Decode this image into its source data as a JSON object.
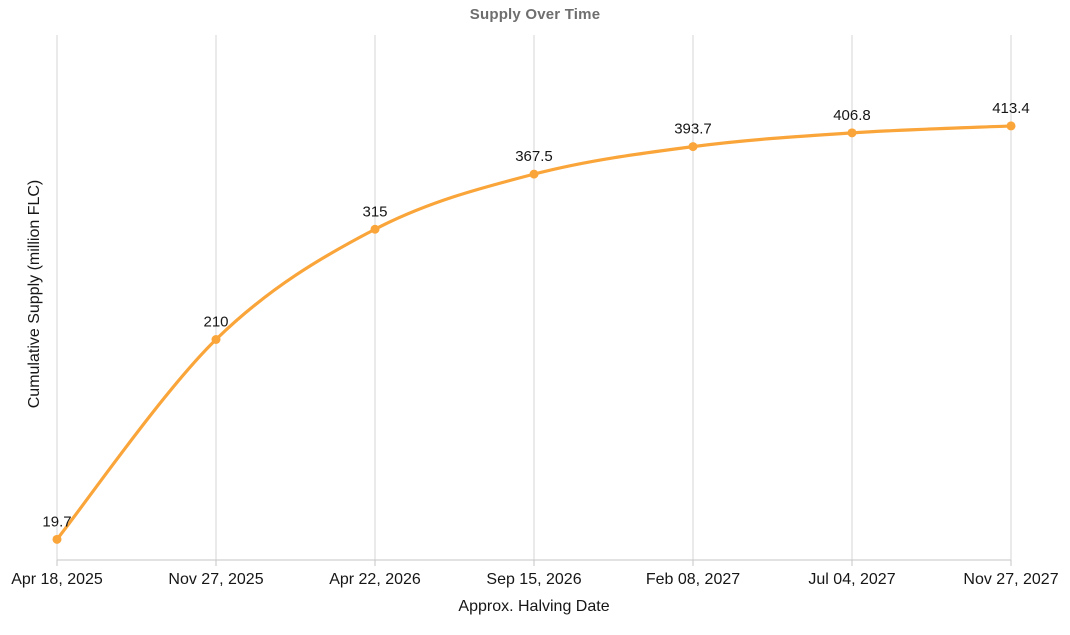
{
  "chart_data": {
    "type": "line",
    "title": "Supply Over Time",
    "xlabel": "Approx. Halving Date",
    "ylabel": "Cumulative Supply (million FLC)",
    "categories": [
      "Apr 18, 2025",
      "Nov 27, 2025",
      "Apr 22, 2026",
      "Sep 15, 2026",
      "Feb 08, 2027",
      "Jul 04, 2027",
      "Nov 27, 2027"
    ],
    "series": [
      {
        "name": "Cumulative Supply (million FLC)",
        "values": [
          19.7,
          210,
          315,
          367.5,
          393.7,
          406.8,
          413.4
        ]
      }
    ],
    "point_labels": [
      "19.7",
      "210",
      "315",
      "367.5",
      "393.7",
      "406.8",
      "413.4"
    ],
    "ylim": [
      0,
      500
    ],
    "grid": "vertical-only",
    "legend": "none",
    "colors": {
      "line": "#FAA53A",
      "marker": "#FAA53A",
      "title_text": "#6E6E6E",
      "axis_text": "#161616",
      "gridline": "#D6D6D6",
      "axis_line": "#C6C6C6",
      "background": "#FFFFFF"
    }
  }
}
